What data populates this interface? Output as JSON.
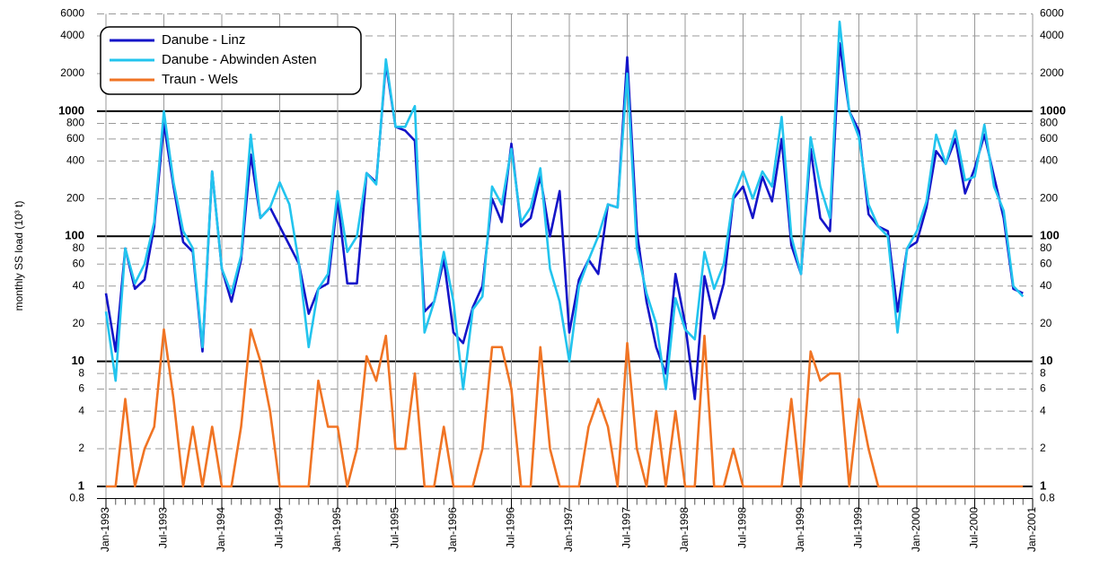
{
  "chart_data": {
    "type": "line",
    "y_label": "monthly SS load (10³ t)",
    "log_scale": true,
    "grid": true,
    "legend": "upper left",
    "categories": [
      "Jan-1993",
      null,
      null,
      null,
      null,
      null,
      "Jul-1993",
      null,
      null,
      null,
      null,
      null,
      "Jan-1994",
      null,
      null,
      null,
      null,
      null,
      "Jul-1994",
      null,
      null,
      null,
      null,
      null,
      "Jan-1995",
      null,
      null,
      null,
      null,
      null,
      "Jul-1995",
      null,
      null,
      null,
      null,
      null,
      "Jan-1996",
      null,
      null,
      null,
      null,
      null,
      "Jul-1996",
      null,
      null,
      null,
      null,
      null,
      "Jan-1997",
      null,
      null,
      null,
      null,
      null,
      "Jul-1997",
      null,
      null,
      null,
      null,
      null,
      "Jan-1998",
      null,
      null,
      null,
      null,
      null,
      "Jul-1998",
      null,
      null,
      null,
      null,
      null,
      "Jan-1999",
      null,
      null,
      null,
      null,
      null,
      "Jul-1999",
      null,
      null,
      null,
      null,
      null,
      "Jan-2000",
      null,
      null,
      null,
      null,
      null,
      "Jul-2000",
      null,
      null,
      null,
      null,
      null,
      "Jan-2001"
    ],
    "ylim": [
      0.8,
      6000
    ],
    "yticks": [
      0.8,
      1,
      2,
      4,
      6,
      8,
      10,
      20,
      40,
      60,
      80,
      100,
      200,
      400,
      600,
      800,
      1000,
      2000,
      4000,
      6000
    ],
    "series": [
      {
        "name": "Danube - Linz",
        "color": "#1414c8",
        "values": [
          35,
          12,
          80,
          38,
          45,
          120,
          800,
          250,
          90,
          75,
          12,
          330,
          55,
          30,
          65,
          450,
          140,
          170,
          120,
          85,
          60,
          24,
          38,
          42,
          200,
          42,
          42,
          320,
          270,
          2400,
          750,
          700,
          580,
          25,
          30,
          65,
          17,
          14,
          27,
          40,
          200,
          130,
          550,
          120,
          140,
          300,
          100,
          230,
          17,
          45,
          65,
          50,
          180,
          170,
          2700,
          110,
          30,
          13,
          8,
          50,
          20,
          5,
          48,
          22,
          42,
          200,
          250,
          140,
          300,
          190,
          600,
          85,
          50,
          500,
          140,
          110,
          3500,
          1000,
          700,
          150,
          120,
          110,
          25,
          80,
          90,
          170,
          480,
          380,
          600,
          220,
          350,
          650,
          300,
          140,
          38,
          35,
          null
        ]
      },
      {
        "name": "Danube - Abwinden Asten",
        "color": "#22c4ee",
        "values": [
          25,
          7,
          80,
          42,
          60,
          130,
          1000,
          270,
          110,
          80,
          13,
          330,
          55,
          35,
          70,
          650,
          140,
          170,
          270,
          180,
          60,
          13,
          38,
          50,
          230,
          75,
          100,
          320,
          260,
          2600,
          750,
          750,
          1100,
          17,
          30,
          75,
          30,
          6,
          26,
          33,
          250,
          180,
          500,
          130,
          170,
          350,
          55,
          30,
          10,
          40,
          65,
          100,
          180,
          170,
          2000,
          80,
          35,
          20,
          6,
          32,
          18,
          15,
          75,
          38,
          60,
          210,
          330,
          200,
          330,
          250,
          900,
          100,
          50,
          620,
          250,
          140,
          5200,
          1000,
          620,
          180,
          120,
          100,
          17,
          80,
          110,
          190,
          650,
          380,
          700,
          280,
          300,
          780,
          250,
          160,
          40,
          33,
          null
        ]
      },
      {
        "name": "Traun - Wels",
        "color": "#f07424",
        "values": [
          1,
          1,
          5,
          1,
          2,
          3,
          18,
          5,
          1,
          3,
          1,
          3,
          1,
          1,
          3,
          18,
          10,
          4,
          1,
          1,
          1,
          1,
          7,
          3,
          3,
          1,
          2,
          11,
          7,
          16,
          2,
          2,
          8,
          1,
          1,
          3,
          1,
          1,
          1,
          2,
          13,
          13,
          6,
          1,
          1,
          13,
          2,
          1,
          1,
          1,
          3,
          5,
          3,
          1,
          14,
          2,
          1,
          4,
          1,
          4,
          1,
          1,
          16,
          1,
          1,
          2,
          1,
          1,
          1,
          1,
          1,
          5,
          1,
          12,
          7,
          8,
          8,
          1,
          5,
          2,
          1,
          1,
          1,
          1,
          1,
          1,
          1,
          1,
          1,
          1,
          1,
          1,
          1,
          1,
          1,
          1,
          null
        ]
      }
    ]
  }
}
